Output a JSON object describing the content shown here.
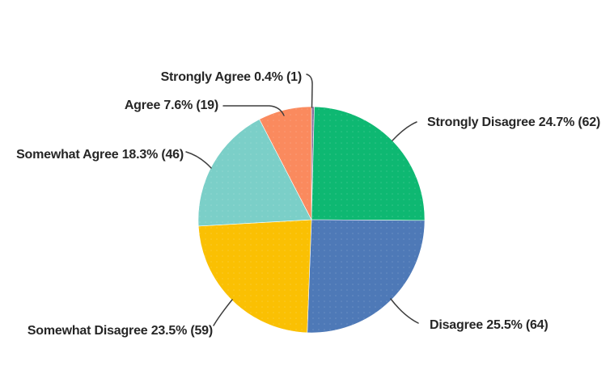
{
  "chart_data": {
    "type": "pie",
    "title": "",
    "direction": "clockwise",
    "start_angle_deg": 0,
    "legend_position": "none",
    "label_style": "outside-with-leader-lines",
    "label_text_color": "#262626",
    "leader_line_color": "#3d3d3d",
    "slices": [
      {
        "label": "Strongly Agree",
        "percent": 0.4,
        "count": 1,
        "color": "#8a6f9e",
        "display": "Strongly Agree 0.4% (1)"
      },
      {
        "label": "Strongly Disagree",
        "percent": 24.7,
        "count": 62,
        "color": "#0eb872",
        "display": "Strongly Disagree 24.7% (62)"
      },
      {
        "label": "Disagree",
        "percent": 25.5,
        "count": 64,
        "color": "#4e79b7",
        "display": "Disagree 25.5% (64)"
      },
      {
        "label": "Somewhat Disagree",
        "percent": 23.5,
        "count": 59,
        "color": "#fac003",
        "display": "Somewhat Disagree 23.5% (59)"
      },
      {
        "label": "Somewhat Agree",
        "percent": 18.3,
        "count": 46,
        "color": "#7bcfc8",
        "display": "Somewhat Agree 18.3% (46)"
      },
      {
        "label": "Agree",
        "percent": 7.6,
        "count": 19,
        "color": "#fa8a5e",
        "display": "Agree 7.6% (19)"
      }
    ]
  }
}
